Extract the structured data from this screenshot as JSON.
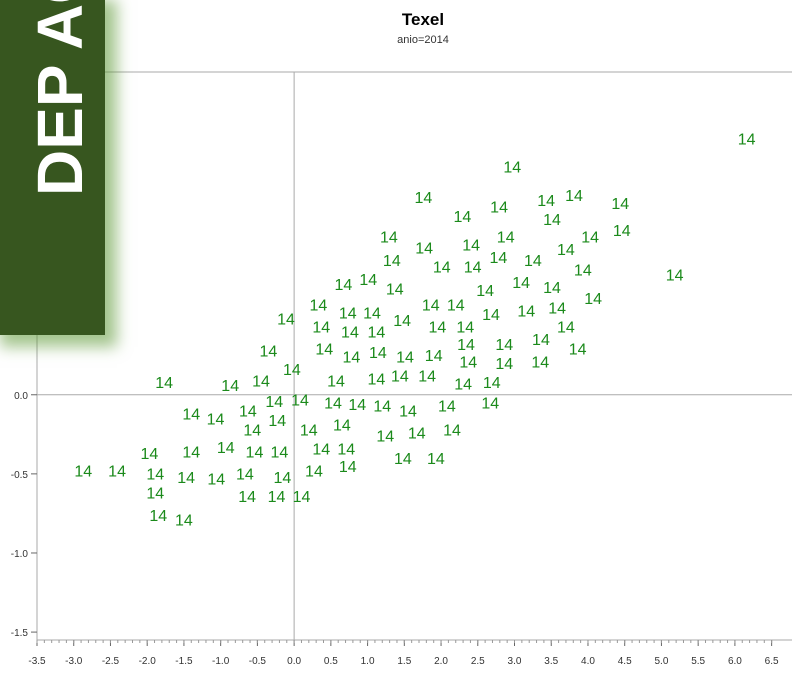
{
  "chart_data": {
    "type": "scatter",
    "title": "Texel",
    "subtitle": "anio=2014",
    "overlay_text": "DEP AC",
    "point_label": "14",
    "color": "#1b8a1b",
    "xlim": [
      -3.5,
      6.75
    ],
    "ylim": [
      -1.55,
      2.04
    ],
    "xticks": [
      {
        "value": -3.5,
        "label": "-3.5"
      },
      {
        "value": -3,
        "label": "-3.0"
      },
      {
        "value": -2.5,
        "label": "-2.5"
      },
      {
        "value": -2,
        "label": "-2.0"
      },
      {
        "value": -1.5,
        "label": "-1.5"
      },
      {
        "value": -1,
        "label": "-1.0"
      },
      {
        "value": -0.5,
        "label": "-0.5"
      },
      {
        "value": 0,
        "label": "0.0"
      },
      0.5,
      {
        "value": 1,
        "label": "1.0"
      },
      1.5,
      {
        "value": 2,
        "label": "2.0"
      },
      2.5,
      {
        "value": 3,
        "label": "3.0"
      },
      3.5,
      {
        "value": 4,
        "label": "4.0"
      },
      4.5,
      {
        "value": 5,
        "label": "5.0"
      },
      5.5,
      {
        "value": 6,
        "label": "6.0"
      },
      6.5
    ],
    "yticks": [
      {
        "value": -1.5,
        "label": "-1.5"
      },
      {
        "value": -1,
        "label": "-1.0"
      },
      {
        "value": -0.5,
        "label": "-0.5"
      },
      {
        "value": 0,
        "label": "0.0"
      }
    ],
    "reference_lines": true,
    "series": [
      {
        "x": [
          6.16,
          2.97,
          1.76,
          3.43,
          3.81,
          2.79,
          4.44,
          2.29,
          3.51,
          4.46,
          1.29,
          2.88,
          4.03,
          2.41,
          1.77,
          3.7,
          1.33,
          2.01,
          2.43,
          2.78,
          3.25,
          3.93,
          5.18,
          0.67,
          1.01,
          1.37,
          2.6,
          3.09,
          3.51,
          4.07,
          1.86,
          2.2,
          2.68,
          3.16,
          3.58,
          0.33,
          -0.11,
          0.37,
          0.73,
          1.06,
          0.76,
          1.12,
          1.47,
          1.95,
          2.33,
          3.7,
          0.41,
          0.78,
          1.14,
          1.51,
          1.9,
          2.34,
          2.86,
          3.36,
          3.86,
          -0.35,
          -0.03,
          2.37,
          2.86,
          3.35,
          -1.77,
          -0.87,
          -0.45,
          0.57,
          1.12,
          1.44,
          1.81,
          2.3,
          2.69,
          -0.27,
          0.08,
          0.53,
          0.86,
          1.2,
          1.55,
          2.08,
          2.67,
          -1.4,
          -1.07,
          -0.63,
          -0.57,
          -0.23,
          0.2,
          0.65,
          1.24,
          1.67,
          2.15,
          -1.97,
          -1.4,
          -0.93,
          -0.54,
          -0.2,
          0.37,
          0.71,
          1.48,
          1.93,
          -2.87,
          -2.41,
          -1.89,
          -1.47,
          -1.06,
          -0.67,
          -0.16,
          0.27,
          0.73,
          -1.89,
          -0.64,
          -0.24,
          0.1,
          -1.85,
          -1.5
        ],
        "values": [
          1.61,
          1.43,
          1.24,
          1.22,
          1.25,
          1.18,
          1.2,
          1.12,
          1.1,
          1.03,
          0.99,
          0.99,
          0.99,
          0.94,
          0.92,
          0.91,
          0.84,
          0.8,
          0.8,
          0.86,
          0.84,
          0.78,
          0.75,
          0.69,
          0.72,
          0.66,
          0.65,
          0.7,
          0.67,
          0.6,
          0.56,
          0.56,
          0.5,
          0.52,
          0.54,
          0.56,
          0.47,
          0.42,
          0.51,
          0.51,
          0.39,
          0.39,
          0.46,
          0.42,
          0.42,
          0.42,
          0.28,
          0.23,
          0.26,
          0.23,
          0.24,
          0.31,
          0.31,
          0.34,
          0.28,
          0.27,
          0.15,
          0.2,
          0.19,
          0.2,
          0.07,
          0.05,
          0.08,
          0.08,
          0.09,
          0.11,
          0.11,
          0.06,
          0.07,
          -0.05,
          -0.04,
          -0.06,
          -0.07,
          -0.08,
          -0.11,
          -0.08,
          -0.06,
          -0.13,
          -0.16,
          -0.11,
          -0.23,
          -0.17,
          -0.23,
          -0.2,
          -0.27,
          -0.25,
          -0.23,
          -0.38,
          -0.37,
          -0.34,
          -0.37,
          -0.37,
          -0.35,
          -0.35,
          -0.41,
          -0.41,
          -0.49,
          -0.49,
          -0.51,
          -0.53,
          -0.54,
          -0.51,
          -0.53,
          -0.49,
          -0.46,
          -0.63,
          -0.65,
          -0.65,
          -0.65,
          -0.77,
          -0.8
        ]
      }
    ]
  }
}
